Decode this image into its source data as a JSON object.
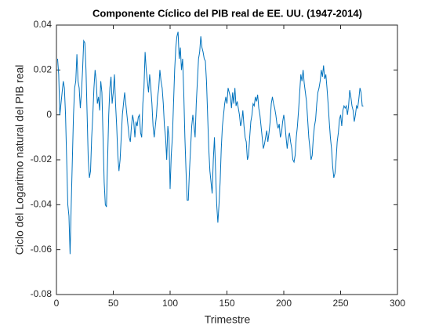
{
  "chart_data": {
    "type": "line",
    "title": "Componente Cíclico del PIB real de EE. UU. (1947-2014)",
    "xlabel": "Trimestre",
    "ylabel": "Ciclo del Logaritmo natural del PIB real",
    "xlim": [
      0,
      300
    ],
    "xticks": [
      0,
      50,
      100,
      150,
      200,
      250,
      300
    ],
    "ylim": [
      -0.08,
      0.04
    ],
    "yticks": [
      -0.08,
      -0.06,
      -0.04,
      -0.02,
      0,
      0.02,
      0.04
    ],
    "grid": false,
    "x": [
      1,
      2,
      3,
      4,
      5,
      6,
      7,
      8,
      9,
      10,
      11,
      12,
      13,
      14,
      15,
      16,
      17,
      18,
      19,
      20,
      21,
      22,
      23,
      24,
      25,
      26,
      27,
      28,
      29,
      30,
      31,
      32,
      33,
      34,
      35,
      36,
      37,
      38,
      39,
      40,
      41,
      42,
      43,
      44,
      45,
      46,
      47,
      48,
      49,
      50,
      51,
      52,
      53,
      54,
      55,
      56,
      57,
      58,
      59,
      60,
      61,
      62,
      63,
      64,
      65,
      66,
      67,
      68,
      69,
      70,
      71,
      72,
      73,
      74,
      75,
      76,
      77,
      78,
      79,
      80,
      81,
      82,
      83,
      84,
      85,
      86,
      87,
      88,
      89,
      90,
      91,
      92,
      93,
      94,
      95,
      96,
      97,
      98,
      99,
      100,
      101,
      102,
      103,
      104,
      105,
      106,
      107,
      108,
      109,
      110,
      111,
      112,
      113,
      114,
      115,
      116,
      117,
      118,
      119,
      120,
      121,
      122,
      123,
      124,
      125,
      126,
      127,
      128,
      129,
      130,
      131,
      132,
      133,
      134,
      135,
      136,
      137,
      138,
      139,
      140,
      141,
      142,
      143,
      144,
      145,
      146,
      147,
      148,
      149,
      150,
      151,
      152,
      153,
      154,
      155,
      156,
      157,
      158,
      159,
      160,
      161,
      162,
      163,
      164,
      165,
      166,
      167,
      168,
      169,
      170,
      171,
      172,
      173,
      174,
      175,
      176,
      177,
      178,
      179,
      180,
      181,
      182,
      183,
      184,
      185,
      186,
      187,
      188,
      189,
      190,
      191,
      192,
      193,
      194,
      195,
      196,
      197,
      198,
      199,
      200,
      201,
      202,
      203,
      204,
      205,
      206,
      207,
      208,
      209,
      210,
      211,
      212,
      213,
      214,
      215,
      216,
      217,
      218,
      219,
      220,
      221,
      222,
      223,
      224,
      225,
      226,
      227,
      228,
      229,
      230,
      231,
      232,
      233,
      234,
      235,
      236,
      237,
      238,
      239,
      240,
      241,
      242,
      243,
      244,
      245,
      246,
      247,
      248,
      249,
      250,
      251,
      252,
      253,
      254,
      255,
      256,
      257,
      258,
      259,
      260,
      261,
      262,
      263,
      264,
      265,
      266,
      267,
      268,
      269,
      270
    ],
    "series": [
      {
        "name": "Ciclo",
        "color": "#0072bd",
        "values": [
          0.025,
          0.018,
          0.0,
          0.005,
          0.01,
          0.015,
          0.012,
          0.0,
          -0.02,
          -0.04,
          -0.045,
          -0.062,
          -0.04,
          -0.02,
          0.0,
          0.012,
          0.015,
          0.027,
          0.015,
          0.012,
          0.003,
          0.01,
          0.02,
          0.033,
          0.032,
          0.02,
          0.0,
          -0.02,
          -0.028,
          -0.025,
          -0.01,
          0.0,
          0.012,
          0.02,
          0.015,
          0.005,
          0.008,
          0.002,
          0.015,
          0.01,
          -0.01,
          -0.03,
          -0.04,
          -0.041,
          -0.02,
          0.0,
          0.012,
          0.017,
          0.005,
          0.01,
          0.018,
          0.005,
          -0.005,
          -0.018,
          -0.025,
          -0.02,
          -0.01,
          0.0,
          0.005,
          0.01,
          0.005,
          0.0,
          -0.005,
          -0.01,
          -0.012,
          -0.005,
          0.0,
          -0.003,
          -0.01,
          -0.003,
          -0.005,
          -0.001,
          0.0,
          -0.008,
          -0.01,
          0.005,
          0.012,
          0.028,
          0.02,
          0.015,
          0.01,
          0.018,
          0.012,
          0.005,
          -0.005,
          -0.01,
          -0.005,
          0.0,
          0.008,
          0.012,
          0.02,
          0.015,
          0.012,
          0.005,
          -0.005,
          -0.01,
          -0.02,
          -0.005,
          -0.01,
          -0.033,
          -0.018,
          -0.01,
          0.005,
          0.02,
          0.03,
          0.035,
          0.037,
          0.025,
          0.03,
          0.02,
          0.025,
          0.01,
          -0.01,
          -0.025,
          -0.038,
          -0.038,
          -0.025,
          -0.015,
          -0.005,
          0.0,
          -0.005,
          -0.01,
          0.005,
          0.015,
          0.025,
          0.028,
          0.035,
          0.03,
          0.028,
          0.025,
          0.024,
          0.015,
          0.0,
          -0.015,
          -0.025,
          -0.03,
          -0.035,
          -0.02,
          -0.01,
          -0.025,
          -0.04,
          -0.048,
          -0.04,
          -0.03,
          -0.015,
          -0.005,
          0.0,
          0.005,
          0.008,
          0.005,
          0.012,
          0.01,
          0.008,
          0.003,
          0.01,
          0.005,
          0.012,
          0.004,
          0.006,
          0.003,
          0.0,
          -0.005,
          -0.003,
          0.002,
          -0.005,
          -0.01,
          -0.012,
          -0.02,
          -0.018,
          -0.01,
          -0.003,
          0.0,
          0.005,
          0.004,
          0.008,
          0.006,
          0.009,
          0.003,
          0.0,
          -0.005,
          -0.01,
          -0.015,
          -0.013,
          -0.01,
          -0.007,
          -0.012,
          -0.008,
          -0.003,
          0.005,
          0.008,
          0.005,
          0.003,
          0.0,
          -0.004,
          -0.006,
          -0.004,
          -0.01,
          -0.008,
          -0.003,
          0.0,
          -0.004,
          -0.01,
          -0.015,
          -0.01,
          -0.008,
          -0.012,
          -0.015,
          -0.02,
          -0.021,
          -0.018,
          -0.01,
          -0.005,
          0.002,
          0.01,
          0.018,
          0.015,
          0.02,
          0.014,
          0.01,
          0.006,
          -0.002,
          -0.01,
          -0.015,
          -0.02,
          -0.018,
          -0.01,
          -0.005,
          -0.002,
          0.005,
          0.01,
          0.012,
          0.015,
          0.02,
          0.017,
          0.022,
          0.016,
          0.018,
          0.012,
          0.005,
          -0.003,
          -0.01,
          -0.015,
          -0.023,
          -0.028,
          -0.026,
          -0.02,
          -0.012,
          -0.008,
          -0.002,
          0.0,
          -0.005,
          0.002,
          0.004,
          0.003,
          0.004,
          0.0,
          0.004,
          0.011,
          0.008,
          0.004,
          0.002,
          -0.003,
          0.0,
          0.004,
          0.003,
          0.007,
          0.012,
          0.01,
          0.004,
          0.004
        ]
      }
    ]
  }
}
